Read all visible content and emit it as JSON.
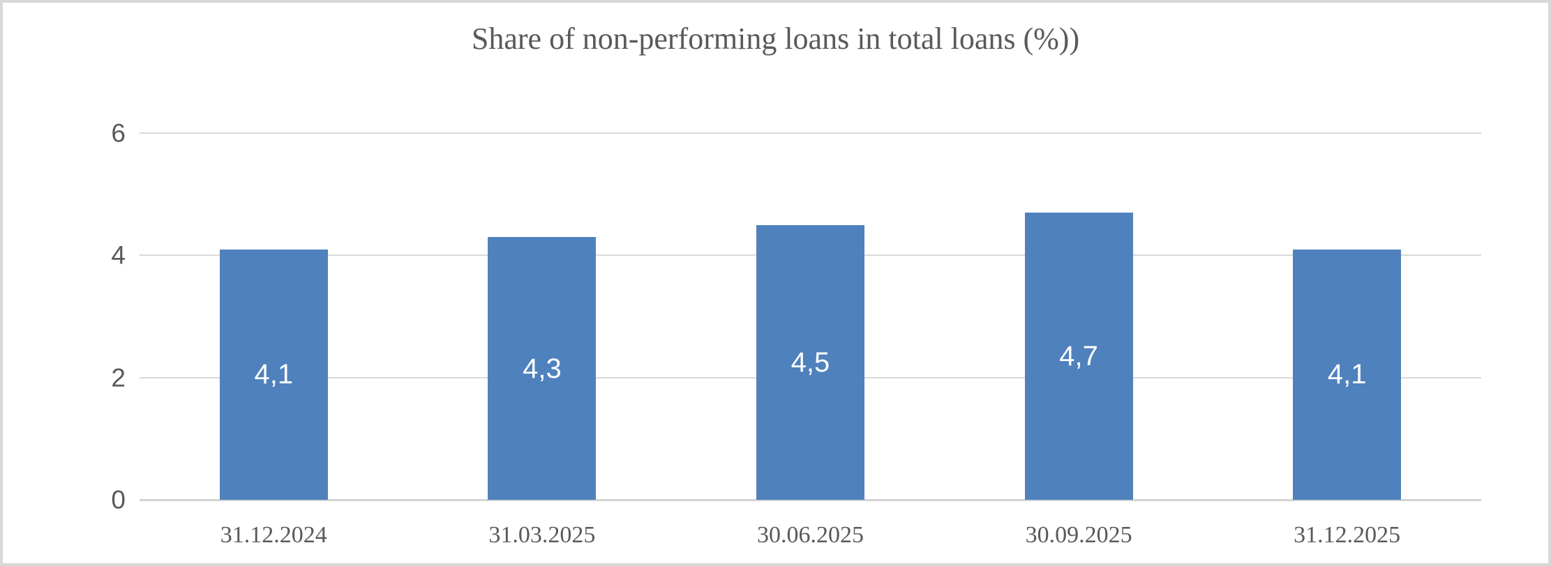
{
  "window": {
    "background": "#ffffff",
    "border_color": "#d8d8d8"
  },
  "chart_data": {
    "type": "bar",
    "title": "Share of non-performing loans in total loans (%))",
    "categories": [
      "31.12.2024",
      "31.03.2025",
      "30.06.2025",
      "30.09.2025",
      "31.12.2025"
    ],
    "values": [
      4.1,
      4.3,
      4.5,
      4.7,
      4.1
    ],
    "data_labels": [
      "4,1",
      "4,3",
      "4,5",
      "4,7",
      "4,1"
    ],
    "xlabel": "",
    "ylabel": "",
    "ylim": [
      0,
      6
    ],
    "yticks": [
      0,
      2,
      4,
      6
    ],
    "grid": true,
    "legend": "none",
    "bar_color": "#4f81bd",
    "gridline_color": "#d9d9d9",
    "baseline_color": "#d3d3d3",
    "text_color": "#595959",
    "data_label_color": "#ffffff"
  }
}
